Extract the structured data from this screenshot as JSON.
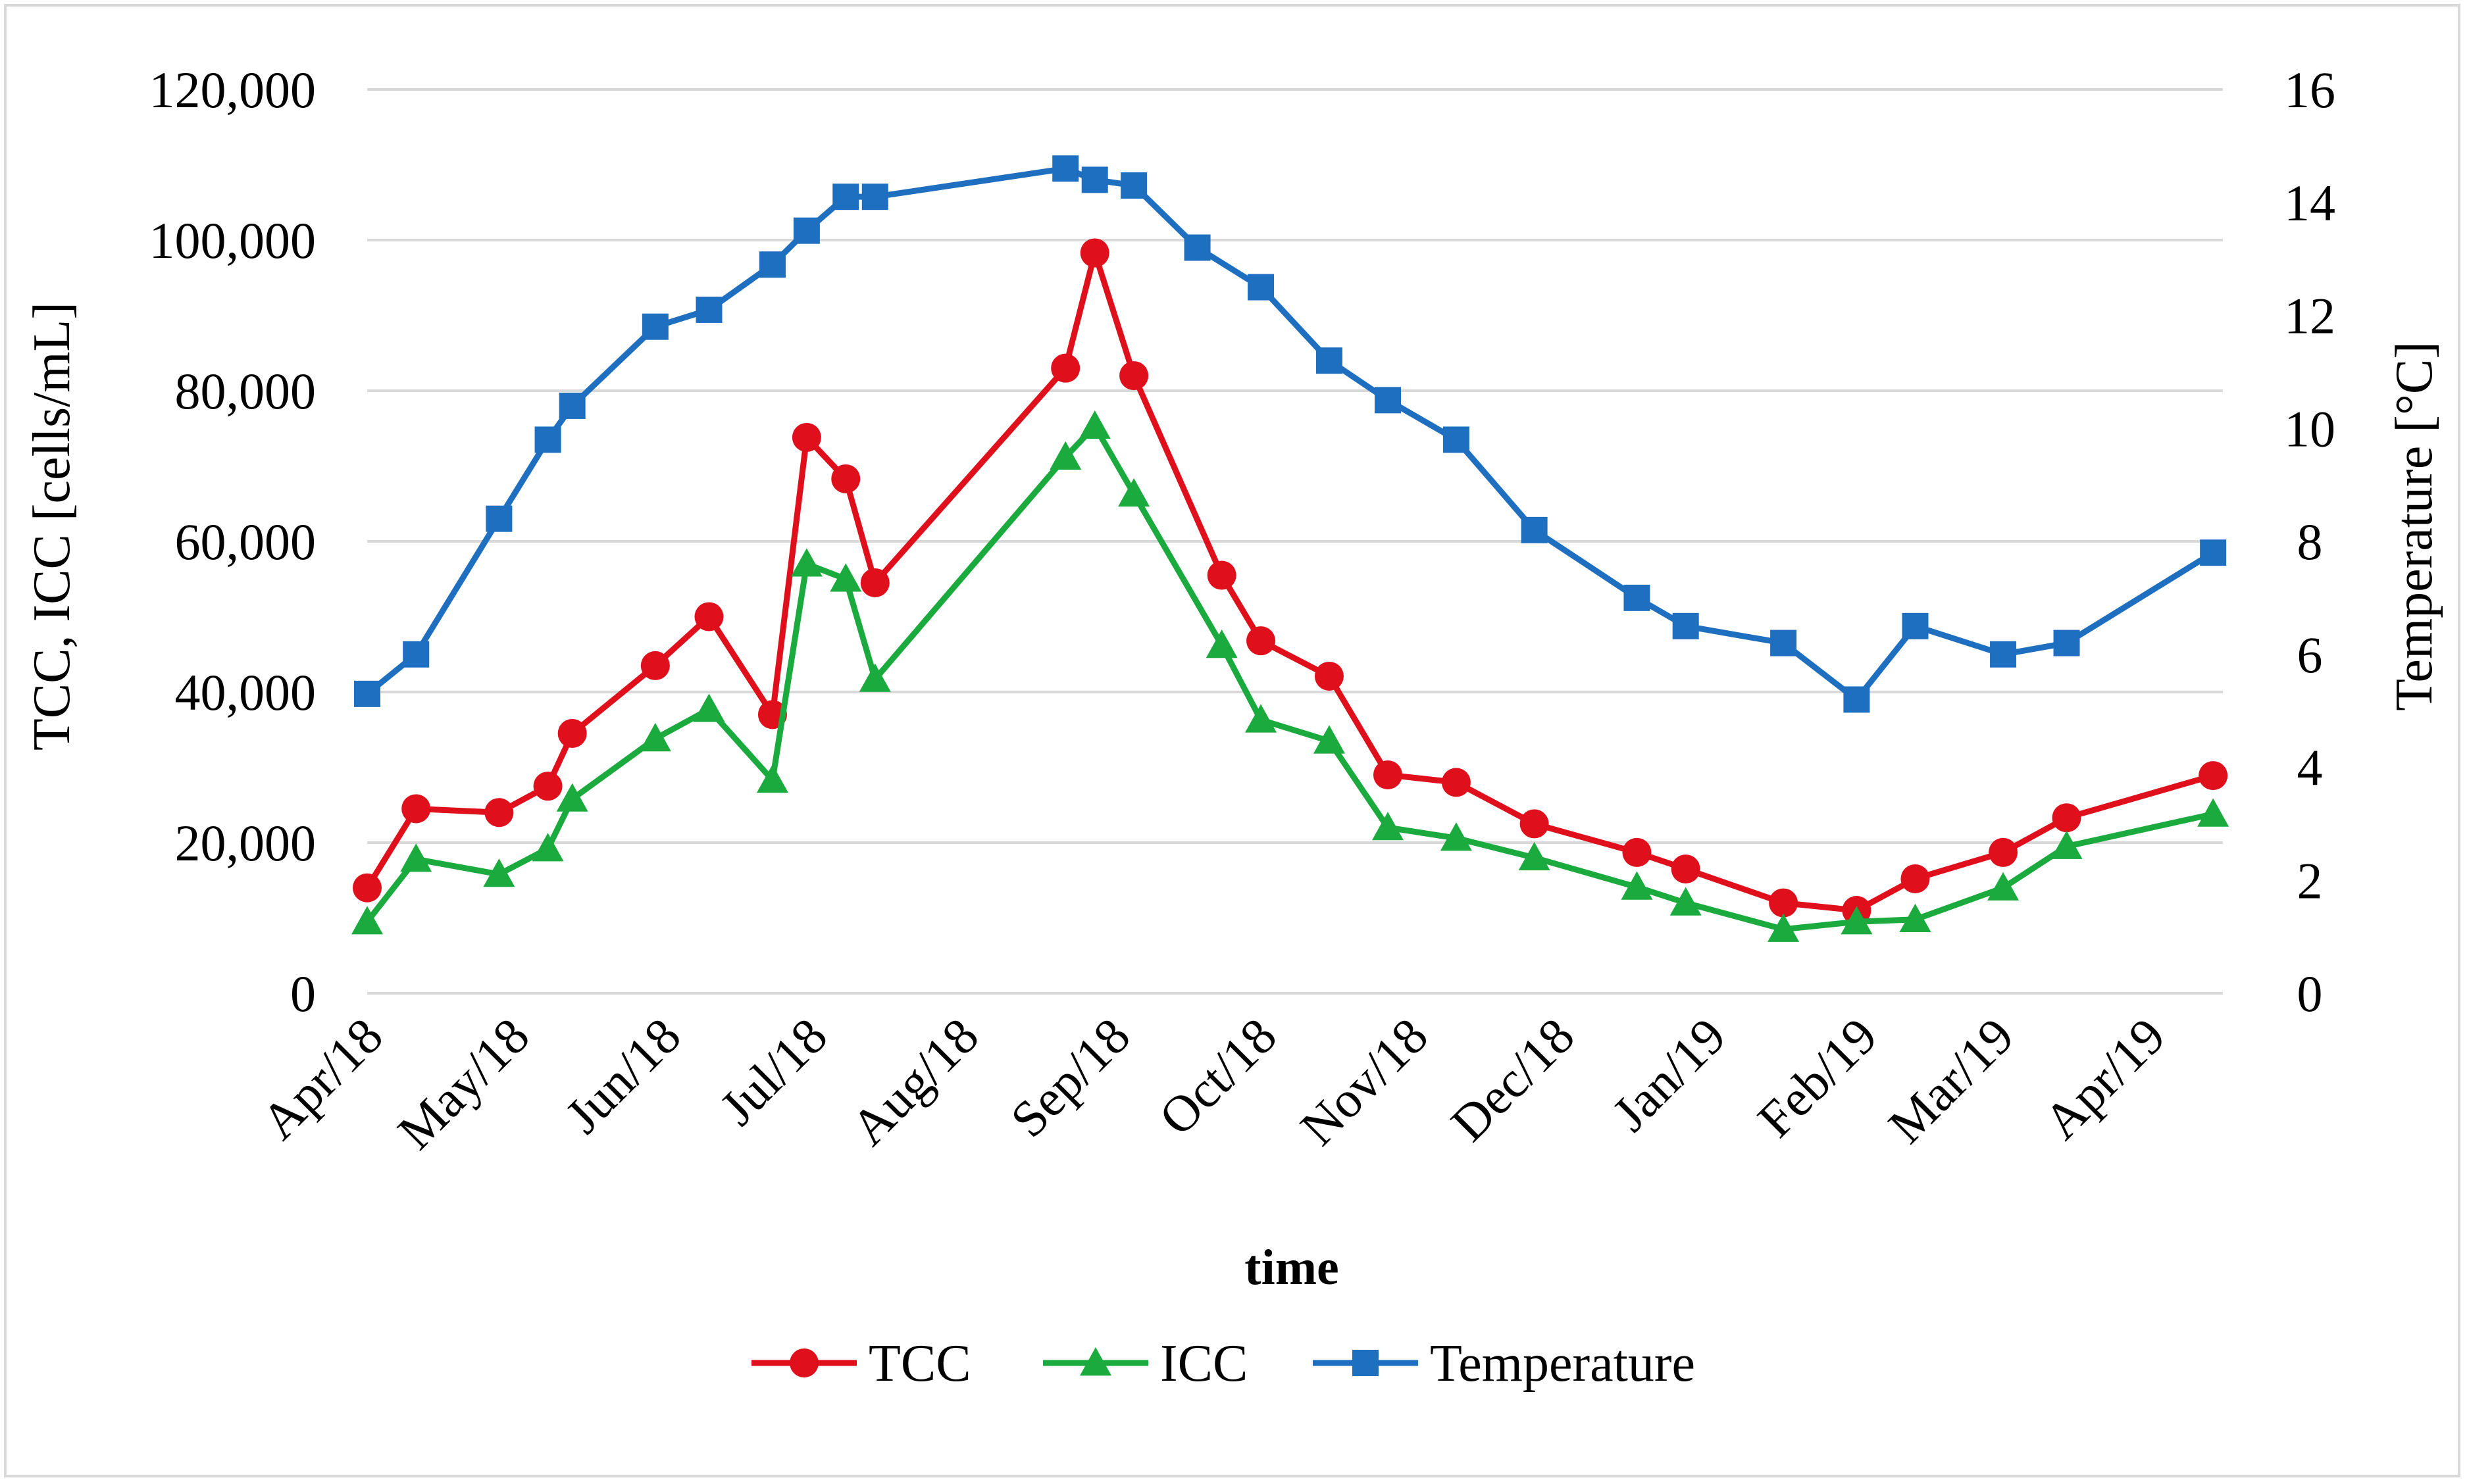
{
  "chart_data": {
    "type": "line",
    "title": "",
    "xlabel": "time",
    "ylabel_left": "TCC, ICC [cells/mL]",
    "ylabel_right": "Temperature [°C]",
    "ylim_left": [
      0,
      120000
    ],
    "ylim_right": [
      0,
      16
    ],
    "left_ticks": [
      "0",
      "20,000",
      "40,000",
      "60,000",
      "80,000",
      "100,000",
      "120,000"
    ],
    "left_tick_values": [
      0,
      20000,
      40000,
      60000,
      80000,
      100000,
      120000
    ],
    "right_ticks": [
      "0",
      "2",
      "4",
      "6",
      "8",
      "10",
      "12",
      "14",
      "16"
    ],
    "right_tick_values": [
      0,
      2,
      4,
      6,
      8,
      10,
      12,
      14,
      16
    ],
    "xlim_days": [
      0,
      380
    ],
    "x_tick_labels": [
      "Apr/18",
      "May/18",
      "Jun/18",
      "Jul/18",
      "Aug/18",
      "Sep/18",
      "Oct/18",
      "Nov/18",
      "Dec/18",
      "Jan/19",
      "Feb/19",
      "Mar/19",
      "Apr/19"
    ],
    "x_tick_days": [
      0,
      30,
      61,
      91,
      122,
      153,
      183,
      214,
      244,
      275,
      306,
      334,
      365
    ],
    "series": [
      {
        "name": "TCC",
        "color": "#e00f1c",
        "marker": "circle",
        "axis": "left",
        "x_days": [
          0,
          10,
          27,
          37,
          42,
          59,
          70,
          83,
          90,
          98,
          104,
          143,
          149,
          157,
          175,
          183,
          197,
          209,
          223,
          239,
          260,
          270,
          290,
          305,
          317,
          335,
          348,
          378
        ],
        "values": [
          14000,
          24500,
          24000,
          27500,
          34500,
          43500,
          50000,
          37000,
          73800,
          68300,
          54500,
          83000,
          98300,
          82000,
          55500,
          46800,
          42100,
          29000,
          28000,
          22500,
          18700,
          16500,
          12000,
          11000,
          15200,
          18700,
          23300,
          28900
        ]
      },
      {
        "name": "ICC",
        "color": "#1aaa3d",
        "marker": "triangle",
        "axis": "left",
        "x_days": [
          0,
          10,
          27,
          37,
          42,
          59,
          70,
          83,
          90,
          98,
          104,
          143,
          149,
          157,
          175,
          183,
          197,
          209,
          223,
          239,
          260,
          270,
          290,
          305,
          317,
          335,
          348,
          378
        ],
        "values": [
          9500,
          17800,
          15800,
          19200,
          25800,
          33800,
          37700,
          28300,
          57000,
          55000,
          41700,
          71200,
          75300,
          66300,
          46200,
          36300,
          33500,
          22000,
          20600,
          18000,
          14100,
          12000,
          8500,
          9500,
          9800,
          14000,
          19500,
          23800
        ]
      },
      {
        "name": "Temperature",
        "color": "#1f6fc0",
        "marker": "square",
        "axis": "right",
        "x_days": [
          0,
          10,
          27,
          37,
          42,
          59,
          70,
          83,
          90,
          98,
          104,
          143,
          149,
          157,
          170,
          183,
          197,
          209,
          223,
          239,
          260,
          270,
          290,
          305,
          317,
          335,
          348,
          378
        ],
        "values": [
          5.3,
          6.0,
          8.4,
          9.8,
          10.4,
          11.8,
          12.1,
          12.9,
          13.5,
          14.1,
          14.1,
          14.6,
          14.4,
          14.3,
          13.2,
          12.5,
          11.2,
          10.5,
          9.8,
          8.2,
          7.0,
          6.5,
          6.2,
          5.2,
          6.5,
          6.0,
          6.2,
          7.8
        ]
      }
    ],
    "legend_position": "bottom-center"
  }
}
